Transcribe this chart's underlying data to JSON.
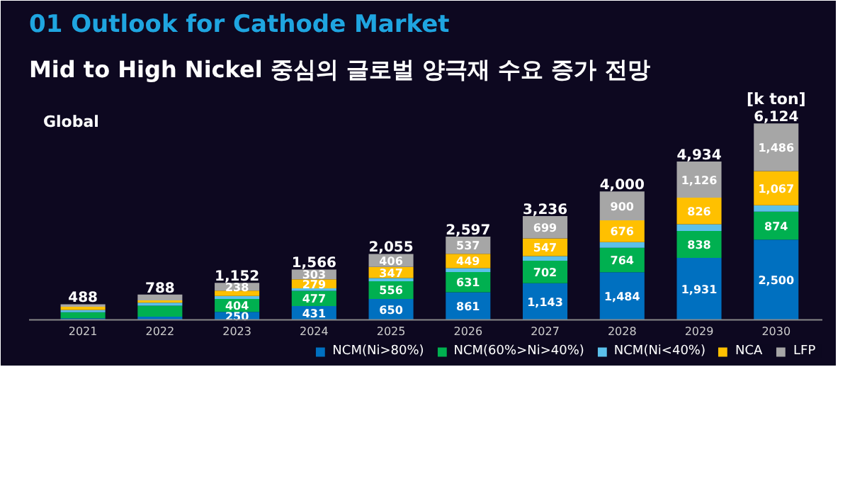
{
  "chart_data": {
    "type": "bar",
    "title": "01 Outlook for Cathode Market",
    "subtitle": "Mid to High Nickel 중심의 글로벌 양극재 수요 증가 전망",
    "annotations": [
      "Global",
      "[k ton]"
    ],
    "categories": [
      "2021",
      "2022",
      "2023",
      "2024",
      "2025",
      "2026",
      "2027",
      "2028",
      "2029",
      "2030"
    ],
    "stacked": true,
    "legend": "bottom",
    "series": [
      {
        "name": "NCM(Ni>80%)",
        "color": "#0070c0",
        "values": [
          53,
          98,
          250,
          431,
          650,
          861,
          1143,
          1484,
          1931,
          2500
        ],
        "value_labels": [
          null,
          null,
          "250",
          "431",
          "650",
          "861",
          "1,143",
          "1,484",
          "1,931",
          "2,500"
        ]
      },
      {
        "name": "NCM(60%>Ni>40%)",
        "color": "#00b050",
        "values": [
          185,
          345,
          404,
          477,
          556,
          631,
          702,
          764,
          838,
          874
        ],
        "value_labels": [
          null,
          null,
          "404",
          "477",
          "556",
          "631",
          "702",
          "764",
          "838",
          "874"
        ]
      },
      {
        "name": "NCM(Ni<40%)",
        "color": "#5bc0eb",
        "values": [
          70,
          95,
          90,
          76,
          96,
          119,
          145,
          176,
          213,
          197
        ],
        "value_labels": [
          null,
          null,
          null,
          null,
          null,
          null,
          null,
          null,
          null,
          null
        ]
      },
      {
        "name": "NCA",
        "color": "#ffc000",
        "values": [
          100,
          70,
          170,
          279,
          347,
          449,
          547,
          676,
          826,
          1067
        ],
        "value_labels": [
          null,
          null,
          null,
          "279",
          "347",
          "449",
          "547",
          "676",
          "826",
          "1,067"
        ]
      },
      {
        "name": "LFP",
        "color": "#a6a6a6",
        "values": [
          80,
          180,
          238,
          303,
          406,
          537,
          699,
          900,
          1126,
          1486
        ],
        "value_labels": [
          null,
          null,
          "238",
          "303",
          "406",
          "537",
          "699",
          "900",
          "1,126",
          "1,486"
        ]
      }
    ],
    "totals": [
      "488",
      "788",
      "1,152",
      "1,566",
      "2,055",
      "2,597",
      "3,236",
      "4,000",
      "4,934",
      "6,124"
    ]
  }
}
